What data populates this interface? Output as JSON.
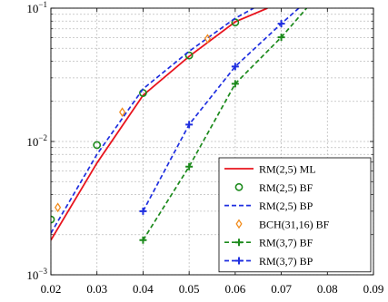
{
  "chart_data": {
    "type": "line",
    "title": "",
    "xlabel": "",
    "ylabel": "",
    "x_scale": "linear",
    "y_scale": "log",
    "xlim": [
      0.02,
      0.09
    ],
    "ylim": [
      0.001,
      0.1
    ],
    "x_ticks": [
      0.02,
      0.03,
      0.04,
      0.05,
      0.06,
      0.07,
      0.08,
      0.09
    ],
    "x_tick_labels": [
      "0.02",
      "0.03",
      "0.04",
      "0.05",
      "0.06",
      "0.07",
      "0.08",
      "0.09"
    ],
    "y_ticks": [
      0.001,
      0.01,
      0.1
    ],
    "y_tick_labels": [
      {
        "base": "10",
        "exp": "−3"
      },
      {
        "base": "10",
        "exp": "−2"
      },
      {
        "base": "10",
        "exp": "−1"
      }
    ],
    "grid": true,
    "legend_position": "bottom-right",
    "series": [
      {
        "name": "RM(2,5) ML",
        "color": "#e8141e",
        "line": "solid",
        "marker": "none",
        "x": [
          0.02,
          0.03,
          0.04,
          0.05,
          0.06,
          0.067
        ],
        "y": [
          0.00182,
          0.0069,
          0.0222,
          0.0435,
          0.079,
          0.1
        ]
      },
      {
        "name": "RM(2,5) BF",
        "color": "#1c8a1c",
        "line": "none",
        "marker": "circle",
        "x": [
          0.02,
          0.03,
          0.04,
          0.05,
          0.06
        ],
        "y": [
          0.0026,
          0.0094,
          0.0231,
          0.0442,
          0.0782
        ]
      },
      {
        "name": "RM(2,5) BP",
        "color": "#1f2fe0",
        "line": "dashed",
        "marker": "none",
        "x": [
          0.02,
          0.03,
          0.04,
          0.05,
          0.06,
          0.064
        ],
        "y": [
          0.00205,
          0.008,
          0.0248,
          0.0475,
          0.084,
          0.1
        ]
      },
      {
        "name": "BCH(31,16) BF",
        "color": "#f28c1c",
        "line": "none",
        "marker": "diamond",
        "x": [
          0.0215,
          0.0355,
          0.054
        ],
        "y": [
          0.0032,
          0.0166,
          0.059
        ]
      },
      {
        "name": "RM(3,7) BF",
        "color": "#1c8a1c",
        "line": "dashed",
        "marker": "plus",
        "x": [
          0.04,
          0.05,
          0.06,
          0.07,
          0.0755
        ],
        "y": [
          0.00182,
          0.00648,
          0.0271,
          0.0605,
          0.1
        ]
      },
      {
        "name": "RM(3,7) BP",
        "color": "#1f2fe0",
        "line": "dashed",
        "marker": "plus",
        "x": [
          0.04,
          0.05,
          0.06,
          0.07,
          0.0738
        ],
        "y": [
          0.003,
          0.0134,
          0.0365,
          0.0765,
          0.1
        ]
      }
    ]
  }
}
